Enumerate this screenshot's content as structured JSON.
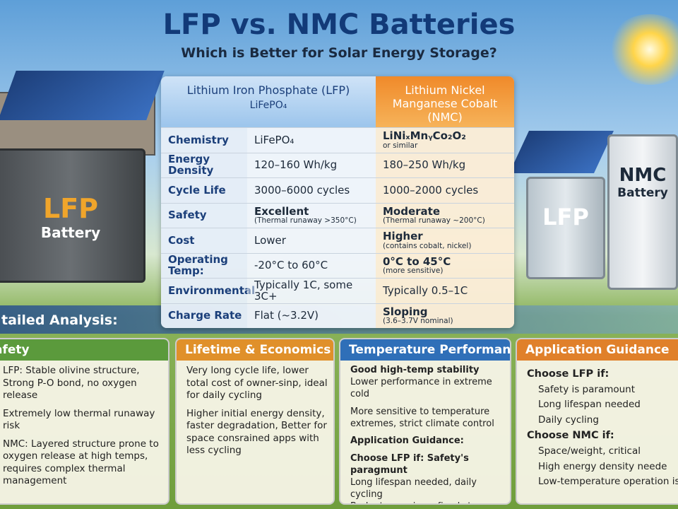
{
  "header": {
    "title": "LFP vs. NMC Batteries",
    "subtitle": "Which is Better for Solar Energy Storage?"
  },
  "left_battery": {
    "label": "LFP",
    "sublabel": "Battery"
  },
  "right_batteries": {
    "small_label": "LFP",
    "large_label": "NMC",
    "large_sublabel": "Battery"
  },
  "table": {
    "columns": [
      {
        "name": "Lithium Iron Phosphate (LFP)",
        "formula": "LiFePO₄"
      },
      {
        "name": "Lithium Nickel Manganese Cobalt (NMC)"
      }
    ],
    "rows": [
      [
        "Chemistry",
        "LiFePO₄",
        {
          "main": "LiNiₓMnᵧCo₂O₂",
          "note": "or similar"
        }
      ],
      [
        "Energy Density",
        "120–160 Wh/kg",
        "180–250 Wh/kg"
      ],
      [
        "Cycle Life",
        "3000–6000 cycles",
        "1000–2000 cycles"
      ],
      [
        "Safety",
        {
          "main": "Excellent",
          "note": "(Thermal runaway >350°C)"
        },
        {
          "main": "Moderate",
          "note": "(Thermal runaway ~200°C)"
        }
      ],
      [
        "Cost",
        "Lower",
        {
          "main": "Higher",
          "note": "(contains cobalt, nickel)"
        }
      ],
      [
        "Operating Temp:",
        "-20°C to 60°C",
        {
          "main": "0°C to 45°C",
          "note": "(more sensitive)"
        }
      ],
      [
        "Environmental",
        "Typically 1C, some 3C+",
        "Typically 0.5–1C"
      ],
      [
        "Charge Rate",
        "Flat (~3.2V)",
        {
          "main": "Sloping",
          "note": "(3.6–3.7V nominal)"
        }
      ]
    ]
  },
  "analysis_title": "tailed Analysis:",
  "cards": [
    {
      "title": "afety",
      "items": [
        "LFP: Stable olivine structure, Strong P-O bond, no oxygen release",
        "Extremely low thermal runaway risk",
        "NMC: Layered structure prone to oxygen release at high temps, requires complex thermal management"
      ]
    },
    {
      "title": "Lifetime & Economics",
      "items": [
        "Very long cycle life, lower total cost of owner-sinp, ideal for daily cycling",
        "Higher initial energy density, faster degradation, Better for space consrained apps with less cycling"
      ]
    },
    {
      "title": "Temperature Performance",
      "items": [
        "Good high-temp stability",
        "Lower performance in extreme cold",
        "More sensitive to temperature extremes, strict climate control",
        "Application Guidance:",
        "Choose LFP if: Safety's paragmunt",
        "Long lifespan needed, daily cycling",
        "Budget-conscious, fixed storage"
      ]
    },
    {
      "title": "Application Guidance",
      "lfp_heading": "Choose LFP if:",
      "lfp_items": [
        "Safety is paramount",
        "Long lifespan needed",
        "Daily cycling"
      ],
      "nmc_heading": "Choose NMC if:",
      "nmc_items": [
        "Space/weight, critical",
        "High energy density neede",
        "Low-temperature operation is ess"
      ]
    }
  ]
}
